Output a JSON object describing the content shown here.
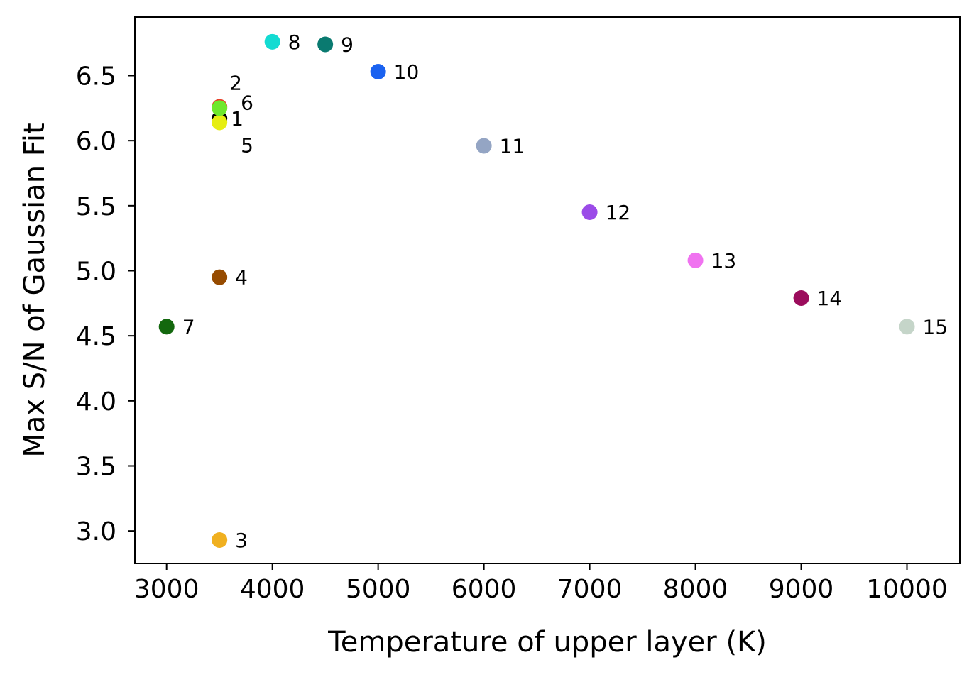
{
  "chart_data": {
    "type": "scatter",
    "xlabel": "Temperature of upper layer (K)",
    "ylabel": "Max S/N of Gaussian Fit",
    "xlim": [
      2700,
      10500
    ],
    "ylim": [
      2.75,
      6.95
    ],
    "xticks": [
      3000,
      4000,
      5000,
      6000,
      7000,
      8000,
      9000,
      10000
    ],
    "yticks": [
      "3.0",
      "3.5",
      "4.0",
      "4.5",
      "5.0",
      "5.5",
      "6.0",
      "6.5"
    ],
    "grid": false,
    "points": [
      {
        "label": "1",
        "x": 3500,
        "y": 6.17,
        "color": "#000000",
        "label_dx": 16,
        "label_dy": 0
      },
      {
        "label": "2",
        "x": 3500,
        "y": 6.26,
        "color": "#e8412a",
        "label_dx": 14,
        "label_dy": -34
      },
      {
        "label": "3",
        "x": 3500,
        "y": 2.93,
        "color": "#f0b020",
        "label_dx": 22,
        "label_dy": 0
      },
      {
        "label": "4",
        "x": 3500,
        "y": 4.95,
        "color": "#964B00",
        "label_dx": 22,
        "label_dy": 0
      },
      {
        "label": "5",
        "x": 3500,
        "y": 6.14,
        "color": "#e6ee12",
        "label_dx": 30,
        "label_dy": 32
      },
      {
        "label": "6",
        "x": 3500,
        "y": 6.25,
        "color": "#6ee82c",
        "label_dx": 30,
        "label_dy": -8
      },
      {
        "label": "7",
        "x": 3000,
        "y": 4.57,
        "color": "#13680e",
        "label_dx": 22,
        "label_dy": 0
      },
      {
        "label": "8",
        "x": 4000,
        "y": 6.76,
        "color": "#13dbd2",
        "label_dx": 22,
        "label_dy": 0
      },
      {
        "label": "9",
        "x": 4500,
        "y": 6.74,
        "color": "#0a7a70",
        "label_dx": 22,
        "label_dy": 0
      },
      {
        "label": "10",
        "x": 5000,
        "y": 6.53,
        "color": "#1a62f0",
        "label_dx": 22,
        "label_dy": 0
      },
      {
        "label": "11",
        "x": 6000,
        "y": 5.96,
        "color": "#94a5c4",
        "label_dx": 22,
        "label_dy": 0
      },
      {
        "label": "12",
        "x": 7000,
        "y": 5.45,
        "color": "#9b4be8",
        "label_dx": 22,
        "label_dy": 0
      },
      {
        "label": "13",
        "x": 8000,
        "y": 5.08,
        "color": "#f073f0",
        "label_dx": 22,
        "label_dy": 0
      },
      {
        "label": "14",
        "x": 9000,
        "y": 4.79,
        "color": "#9b0c5c",
        "label_dx": 22,
        "label_dy": 0
      },
      {
        "label": "15",
        "x": 10000,
        "y": 4.57,
        "color": "#c5d5c9",
        "label_dx": 22,
        "label_dy": 0
      }
    ]
  }
}
